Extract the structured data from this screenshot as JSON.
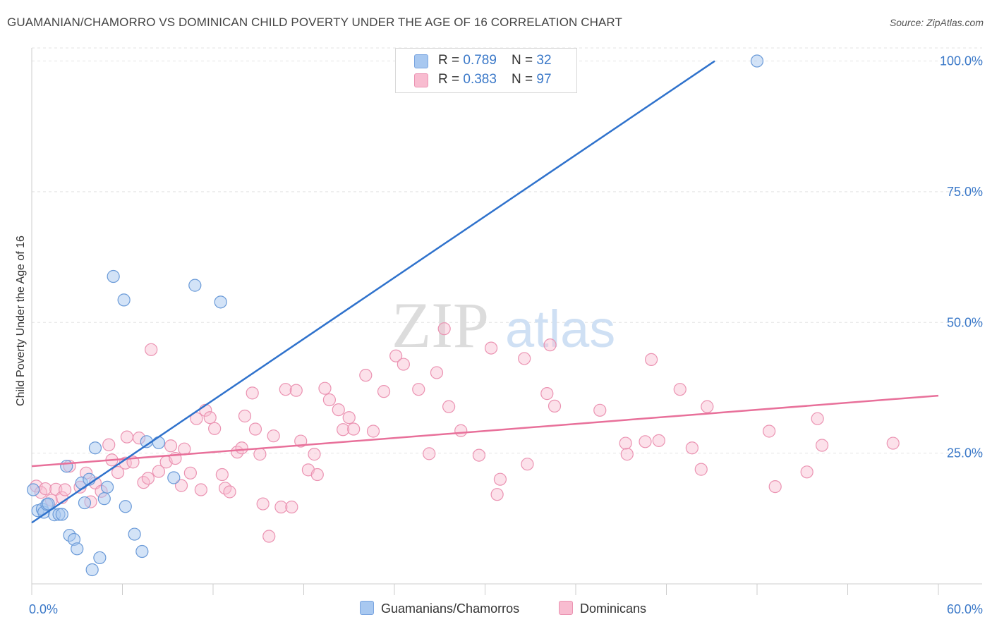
{
  "title": "GUAMANIAN/CHAMORRO VS DOMINICAN CHILD POVERTY UNDER THE AGE OF 16 CORRELATION CHART",
  "source": "Source: ZipAtlas.com",
  "watermark": {
    "zip": "ZIP",
    "atlas": "atlas"
  },
  "legend_box": {
    "rows": [
      {
        "r_label": "R = ",
        "r_value": "0.789",
        "n_label": "N = ",
        "n_value": "32",
        "color": "#a8c8f0"
      },
      {
        "r_label": "R = ",
        "r_value": "0.383",
        "n_label": "N = ",
        "n_value": "97",
        "color": "#f8bcd0"
      }
    ]
  },
  "bottom_legend": [
    {
      "label": "Guamanians/Chamorros",
      "color": "#a8c8f0"
    },
    {
      "label": "Dominicans",
      "color": "#f8bcd0"
    }
  ],
  "chart_data": {
    "type": "scatter",
    "title": "GUAMANIAN/CHAMORRO VS DOMINICAN CHILD POVERTY UNDER THE AGE OF 16 CORRELATION CHART",
    "xlabel": "",
    "ylabel": "Child Poverty Under the Age of 16",
    "xlim": [
      0,
      60
    ],
    "ylim": [
      0,
      102.5
    ],
    "x_tick_labels": [
      "0.0%",
      "60.0%"
    ],
    "y_tick_values": [
      25,
      50,
      75,
      100
    ],
    "y_tick_labels": [
      "25.0%",
      "50.0%",
      "75.0%",
      "100.0%"
    ],
    "grid": true,
    "series": [
      {
        "name": "Guamanians/Chamorros",
        "color": "#5b8fd6",
        "fill": "#a8c8f0",
        "points": [
          [
            0.1,
            18
          ],
          [
            0.4,
            14
          ],
          [
            0.7,
            14.3
          ],
          [
            0.8,
            13.7
          ],
          [
            1.0,
            15.2
          ],
          [
            1.1,
            15.3
          ],
          [
            1.5,
            13.2
          ],
          [
            1.8,
            13.3
          ],
          [
            2.0,
            13.3
          ],
          [
            2.3,
            22.5
          ],
          [
            2.5,
            9.3
          ],
          [
            2.8,
            8.5
          ],
          [
            3.0,
            6.7
          ],
          [
            3.3,
            19.3
          ],
          [
            3.5,
            15.5
          ],
          [
            3.8,
            20
          ],
          [
            4.0,
            2.7
          ],
          [
            4.2,
            26
          ],
          [
            4.5,
            5
          ],
          [
            4.8,
            16.3
          ],
          [
            5.0,
            18.5
          ],
          [
            5.4,
            58.8
          ],
          [
            6.1,
            54.3
          ],
          [
            6.2,
            14.8
          ],
          [
            6.8,
            9.5
          ],
          [
            7.3,
            6.2
          ],
          [
            7.6,
            27.2
          ],
          [
            8.4,
            27
          ],
          [
            9.4,
            20.3
          ],
          [
            10.8,
            57.1
          ],
          [
            12.5,
            53.9
          ],
          [
            48.0,
            100
          ]
        ],
        "trend": [
          [
            0,
            11.7
          ],
          [
            45.2,
            100
          ]
        ]
      },
      {
        "name": "Dominicans",
        "color": "#e8709a",
        "fill": "#f8bcd0",
        "points": [
          [
            0.3,
            18.7
          ],
          [
            0.6,
            17.5
          ],
          [
            0.9,
            18.2
          ],
          [
            1.3,
            16
          ],
          [
            1.6,
            18.1
          ],
          [
            2.0,
            16.5
          ],
          [
            2.2,
            18
          ],
          [
            2.5,
            22.5
          ],
          [
            3.2,
            18.5
          ],
          [
            3.6,
            21.2
          ],
          [
            3.9,
            15.7
          ],
          [
            4.2,
            19.3
          ],
          [
            4.6,
            17.7
          ],
          [
            5.1,
            26.6
          ],
          [
            5.3,
            23.7
          ],
          [
            5.7,
            21.3
          ],
          [
            6.2,
            23.1
          ],
          [
            6.3,
            28.1
          ],
          [
            6.7,
            23.3
          ],
          [
            7.1,
            27.9
          ],
          [
            7.4,
            19.4
          ],
          [
            7.7,
            20.2
          ],
          [
            7.9,
            44.8
          ],
          [
            8.4,
            21.5
          ],
          [
            8.9,
            23.3
          ],
          [
            9.2,
            26.4
          ],
          [
            9.5,
            24
          ],
          [
            9.9,
            18.8
          ],
          [
            10.1,
            25.8
          ],
          [
            10.5,
            21.2
          ],
          [
            10.9,
            31.6
          ],
          [
            11.2,
            18
          ],
          [
            11.5,
            33.2
          ],
          [
            11.8,
            31.8
          ],
          [
            12.1,
            29.7
          ],
          [
            12.6,
            20.9
          ],
          [
            12.8,
            18.3
          ],
          [
            13.1,
            17.6
          ],
          [
            13.6,
            25.2
          ],
          [
            13.9,
            26
          ],
          [
            14.1,
            32.1
          ],
          [
            14.6,
            36.5
          ],
          [
            14.8,
            29.6
          ],
          [
            15.1,
            24.8
          ],
          [
            15.3,
            15.3
          ],
          [
            15.7,
            9.1
          ],
          [
            16.0,
            28.3
          ],
          [
            16.5,
            14.7
          ],
          [
            16.8,
            37.2
          ],
          [
            17.2,
            14.7
          ],
          [
            17.5,
            37
          ],
          [
            17.8,
            27.3
          ],
          [
            18.3,
            21.8
          ],
          [
            18.7,
            24.8
          ],
          [
            18.9,
            20.9
          ],
          [
            19.4,
            37.4
          ],
          [
            19.7,
            35.2
          ],
          [
            20.3,
            33.3
          ],
          [
            20.6,
            29.5
          ],
          [
            21.0,
            31.8
          ],
          [
            21.3,
            29.6
          ],
          [
            22.1,
            39.9
          ],
          [
            22.6,
            29.2
          ],
          [
            23.3,
            36.8
          ],
          [
            24.1,
            43.6
          ],
          [
            24.6,
            42
          ],
          [
            25.6,
            37.2
          ],
          [
            26.3,
            24.9
          ],
          [
            26.8,
            40.4
          ],
          [
            27.3,
            48.8
          ],
          [
            27.6,
            33.9
          ],
          [
            28.4,
            29.3
          ],
          [
            29.6,
            24.6
          ],
          [
            30.4,
            45.1
          ],
          [
            30.8,
            17.1
          ],
          [
            31.0,
            20
          ],
          [
            32.6,
            43.1
          ],
          [
            32.8,
            22.9
          ],
          [
            34.1,
            36.4
          ],
          [
            34.3,
            45.7
          ],
          [
            34.6,
            34
          ],
          [
            37.6,
            33.2
          ],
          [
            39.3,
            26.9
          ],
          [
            39.4,
            24.8
          ],
          [
            40.6,
            27.2
          ],
          [
            41.0,
            42.9
          ],
          [
            41.5,
            27.4
          ],
          [
            42.9,
            37.2
          ],
          [
            43.7,
            26
          ],
          [
            44.3,
            21.9
          ],
          [
            44.7,
            33.9
          ],
          [
            48.8,
            29.2
          ],
          [
            49.2,
            18.6
          ],
          [
            51.3,
            21.4
          ],
          [
            52.0,
            31.6
          ],
          [
            52.3,
            26.5
          ],
          [
            57.0,
            26.9
          ]
        ],
        "trend": [
          [
            0,
            22.5
          ],
          [
            60,
            36
          ]
        ]
      }
    ]
  }
}
